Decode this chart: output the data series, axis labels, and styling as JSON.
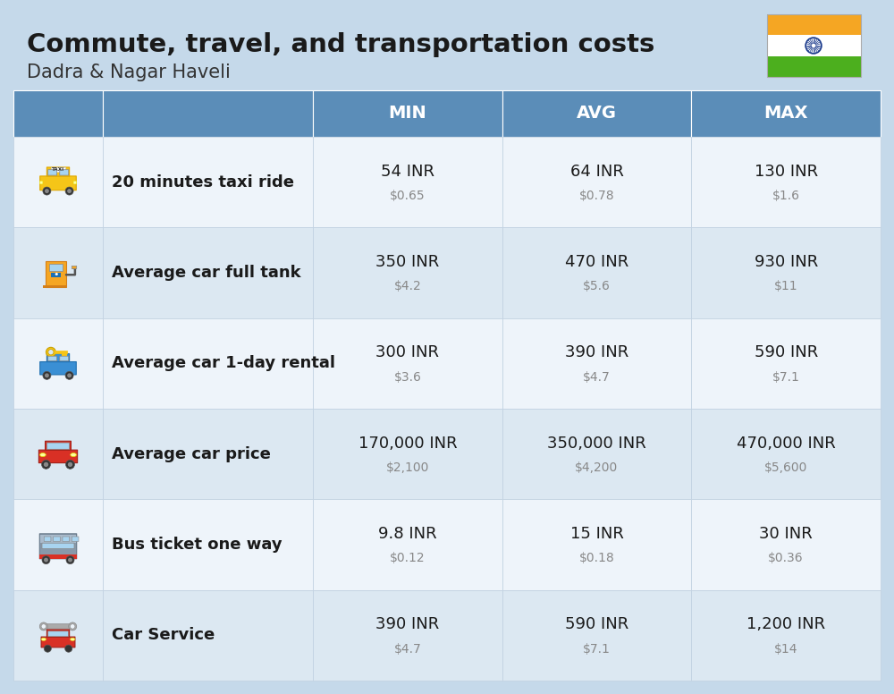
{
  "title": "Commute, travel, and transportation costs",
  "subtitle": "Dadra & Nagar Haveli",
  "bg_color": "#c5d9ea",
  "header_bg": "#5b8db8",
  "header_text_color": "#ffffff",
  "row_bg_light": "#dce8f2",
  "row_bg_white": "#eef4fa",
  "col_headers": [
    "MIN",
    "AVG",
    "MAX"
  ],
  "rows": [
    {
      "label": "20 minutes taxi ride",
      "min_inr": "54 INR",
      "min_usd": "$0.65",
      "avg_inr": "64 INR",
      "avg_usd": "$0.78",
      "max_inr": "130 INR",
      "max_usd": "$1.6"
    },
    {
      "label": "Average car full tank",
      "min_inr": "350 INR",
      "min_usd": "$4.2",
      "avg_inr": "470 INR",
      "avg_usd": "$5.6",
      "max_inr": "930 INR",
      "max_usd": "$11"
    },
    {
      "label": "Average car 1-day rental",
      "min_inr": "300 INR",
      "min_usd": "$3.6",
      "avg_inr": "390 INR",
      "avg_usd": "$4.7",
      "max_inr": "590 INR",
      "max_usd": "$7.1"
    },
    {
      "label": "Average car price",
      "min_inr": "170,000 INR",
      "min_usd": "$2,100",
      "avg_inr": "350,000 INR",
      "avg_usd": "$4,200",
      "max_inr": "470,000 INR",
      "max_usd": "$5,600"
    },
    {
      "label": "Bus ticket one way",
      "min_inr": "9.8 INR",
      "min_usd": "$0.12",
      "avg_inr": "15 INR",
      "avg_usd": "$0.18",
      "max_inr": "30 INR",
      "max_usd": "$0.36"
    },
    {
      "label": "Car Service",
      "min_inr": "390 INR",
      "min_usd": "$4.7",
      "avg_inr": "590 INR",
      "avg_usd": "$7.1",
      "max_inr": "1,200 INR",
      "max_usd": "$14"
    }
  ],
  "header_fontsize": 21,
  "subtitle_fontsize": 15,
  "col_header_fontsize": 14,
  "row_label_fontsize": 13,
  "cell_inr_fontsize": 13,
  "cell_usd_fontsize": 10,
  "flag_orange": "#f5a623",
  "flag_white": "#ffffff",
  "flag_green": "#4caf1e",
  "flag_chakra": "#1a3a8c"
}
